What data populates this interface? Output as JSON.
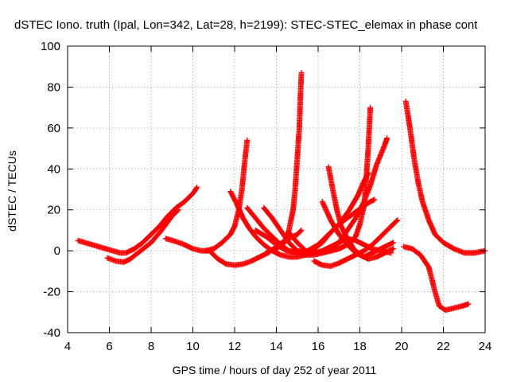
{
  "chart_data": {
    "type": "scatter",
    "title": "dSTEC Iono. truth (Ipal, Lon=342, Lat=28, h=2199): STEC-STEC_elemax in phase cont",
    "xlabel": "GPS time / hours of day 252 of year 2011",
    "ylabel": "dSTEC  / TECUs",
    "xlim": [
      4,
      24
    ],
    "ylim": [
      -40,
      100
    ],
    "x_ticks": [
      4,
      6,
      8,
      10,
      12,
      14,
      16,
      18,
      20,
      22,
      24
    ],
    "y_ticks": [
      -40,
      -20,
      0,
      20,
      40,
      60,
      80,
      100
    ],
    "x_tick_labels": [
      "4",
      "6",
      "8",
      "10",
      "12",
      "14",
      "16",
      "18",
      "20",
      "22",
      "24"
    ],
    "y_tick_labels": [
      "-40",
      "-20",
      "0",
      "20",
      "40",
      "60",
      "80",
      "100"
    ],
    "grid": true,
    "marker": "+",
    "color": "#ff0000",
    "series": [
      {
        "points": [
          [
            4.5,
            5
          ],
          [
            5.0,
            3.5
          ],
          [
            5.5,
            2
          ],
          [
            6.0,
            0.5
          ],
          [
            6.5,
            -1
          ],
          [
            6.8,
            -1
          ],
          [
            7.2,
            1
          ],
          [
            7.6,
            4
          ],
          [
            8.0,
            8
          ],
          [
            8.4,
            12
          ],
          [
            8.8,
            17
          ],
          [
            9.2,
            21
          ],
          [
            9.6,
            24
          ],
          [
            10.0,
            28
          ],
          [
            10.2,
            31
          ]
        ]
      },
      {
        "points": [
          [
            5.9,
            -3.5
          ],
          [
            6.3,
            -5
          ],
          [
            6.7,
            -5.5
          ],
          [
            7.0,
            -4
          ],
          [
            7.5,
            0
          ],
          [
            8.0,
            4
          ],
          [
            8.5,
            10
          ],
          [
            9.0,
            17
          ],
          [
            9.3,
            20
          ]
        ]
      },
      {
        "points": [
          [
            8.7,
            6
          ],
          [
            9.2,
            4.5
          ],
          [
            9.6,
            3
          ],
          [
            10.0,
            1
          ],
          [
            10.4,
            0
          ],
          [
            10.8,
            0
          ],
          [
            11.2,
            -4
          ],
          [
            11.6,
            -6.5
          ],
          [
            12.0,
            -7
          ],
          [
            12.4,
            -6.5
          ],
          [
            12.8,
            -5
          ],
          [
            13.2,
            -3
          ],
          [
            13.6,
            -1
          ],
          [
            14.0,
            2
          ],
          [
            14.4,
            5
          ],
          [
            14.8,
            7
          ],
          [
            15.0,
            8
          ],
          [
            15.2,
            10
          ]
        ]
      },
      {
        "points": [
          [
            10.6,
            0
          ],
          [
            11.0,
            1
          ],
          [
            11.4,
            4
          ],
          [
            11.8,
            8
          ],
          [
            12.0,
            12
          ],
          [
            12.2,
            20
          ],
          [
            12.35,
            30
          ],
          [
            12.5,
            45
          ],
          [
            12.6,
            54
          ]
        ]
      },
      {
        "points": [
          [
            11.8,
            29
          ],
          [
            12.1,
            23
          ],
          [
            12.4,
            16
          ],
          [
            12.7,
            11
          ],
          [
            13.0,
            7
          ],
          [
            13.4,
            3
          ],
          [
            13.8,
            0
          ],
          [
            14.2,
            -2
          ],
          [
            14.6,
            -3
          ],
          [
            15.0,
            -3
          ],
          [
            15.4,
            -2
          ],
          [
            15.8,
            -1
          ],
          [
            16.2,
            0
          ],
          [
            16.6,
            2
          ],
          [
            17.0,
            4
          ],
          [
            17.4,
            6
          ],
          [
            17.8,
            5
          ],
          [
            18.2,
            3
          ],
          [
            18.6,
            1
          ],
          [
            19.0,
            0
          ],
          [
            19.5,
            -1
          ]
        ]
      },
      {
        "points": [
          [
            12.6,
            21
          ],
          [
            13.0,
            16
          ],
          [
            13.4,
            11
          ],
          [
            13.8,
            7
          ],
          [
            14.2,
            3
          ],
          [
            14.6,
            0
          ],
          [
            15.0,
            -1
          ],
          [
            15.4,
            -2
          ],
          [
            15.8,
            -2
          ],
          [
            16.2,
            -1
          ],
          [
            16.6,
            0
          ],
          [
            17.0,
            1
          ]
        ]
      },
      {
        "points": [
          [
            13.4,
            21
          ],
          [
            13.8,
            16
          ],
          [
            14.2,
            10
          ],
          [
            14.6,
            4
          ],
          [
            15.0,
            0
          ],
          [
            15.4,
            -1
          ],
          [
            15.8,
            1
          ],
          [
            16.2,
            4
          ],
          [
            16.6,
            9
          ],
          [
            17.0,
            13
          ],
          [
            17.4,
            16
          ],
          [
            17.8,
            19
          ],
          [
            18.2,
            22
          ],
          [
            18.5,
            24
          ],
          [
            18.7,
            25
          ]
        ]
      },
      {
        "points": [
          [
            13.0,
            10
          ],
          [
            13.5,
            7
          ],
          [
            14.0,
            3
          ],
          [
            14.5,
            0
          ],
          [
            15.0,
            -1
          ],
          [
            15.5,
            0
          ],
          [
            16.0,
            3
          ],
          [
            16.5,
            8
          ],
          [
            17.0,
            13
          ],
          [
            17.5,
            20
          ],
          [
            17.9,
            27
          ],
          [
            18.2,
            34
          ],
          [
            18.4,
            38
          ]
        ]
      },
      {
        "points": [
          [
            13.6,
            0
          ],
          [
            14.0,
            1
          ],
          [
            14.4,
            4
          ],
          [
            14.6,
            10
          ],
          [
            14.8,
            20
          ],
          [
            14.9,
            30
          ],
          [
            15.0,
            45
          ],
          [
            15.1,
            60
          ],
          [
            15.15,
            75
          ],
          [
            15.2,
            87
          ]
        ]
      },
      {
        "points": [
          [
            14.6,
            9
          ],
          [
            15.0,
            4
          ],
          [
            15.4,
            0
          ],
          [
            15.8,
            -1
          ],
          [
            16.2,
            -1
          ],
          [
            16.6,
            0
          ],
          [
            17.0,
            1
          ],
          [
            17.4,
            3
          ],
          [
            17.8,
            7
          ],
          [
            18.0,
            13
          ],
          [
            18.2,
            22
          ],
          [
            18.3,
            35
          ],
          [
            18.4,
            50
          ],
          [
            18.5,
            70
          ]
        ]
      },
      {
        "points": [
          [
            15.8,
            -5
          ],
          [
            16.2,
            -7
          ],
          [
            16.6,
            -7.5
          ],
          [
            17.0,
            -6
          ],
          [
            17.4,
            -4
          ],
          [
            17.8,
            -2
          ],
          [
            18.2,
            0
          ],
          [
            18.6,
            3
          ],
          [
            19.0,
            7
          ],
          [
            19.4,
            11
          ],
          [
            19.8,
            15
          ]
        ]
      },
      {
        "points": [
          [
            16.2,
            24
          ],
          [
            16.6,
            15
          ],
          [
            17.0,
            8
          ],
          [
            17.4,
            3
          ],
          [
            17.8,
            -1
          ],
          [
            18.2,
            -3
          ],
          [
            18.6,
            -1
          ],
          [
            19.0,
            1
          ],
          [
            19.4,
            3
          ],
          [
            19.6,
            4
          ]
        ]
      },
      {
        "points": [
          [
            16.5,
            41
          ],
          [
            16.7,
            30
          ],
          [
            16.9,
            20
          ],
          [
            17.1,
            12
          ],
          [
            17.4,
            6
          ],
          [
            17.7,
            1
          ],
          [
            18.0,
            -2
          ],
          [
            18.4,
            -4
          ],
          [
            18.8,
            -3
          ],
          [
            19.2,
            -1
          ],
          [
            19.6,
            1
          ]
        ]
      },
      {
        "points": [
          [
            16.6,
            0
          ],
          [
            17.0,
            4
          ],
          [
            17.4,
            10
          ],
          [
            17.8,
            16
          ],
          [
            18.2,
            24
          ],
          [
            18.5,
            32
          ],
          [
            18.8,
            42
          ],
          [
            19.0,
            47
          ],
          [
            19.2,
            52
          ],
          [
            19.3,
            55
          ]
        ]
      },
      {
        "points": [
          [
            20.1,
            2
          ],
          [
            20.5,
            1
          ],
          [
            20.9,
            -2
          ],
          [
            21.3,
            -8
          ],
          [
            21.6,
            -20
          ],
          [
            21.8,
            -27
          ],
          [
            22.1,
            -29
          ],
          [
            22.5,
            -28
          ],
          [
            22.9,
            -27
          ],
          [
            23.2,
            -26
          ]
        ]
      },
      {
        "points": [
          [
            20.2,
            73
          ],
          [
            20.4,
            60
          ],
          [
            20.6,
            45
          ],
          [
            20.8,
            33
          ],
          [
            21.0,
            24
          ],
          [
            21.3,
            15
          ],
          [
            21.6,
            8
          ],
          [
            22.0,
            4
          ],
          [
            22.5,
            1
          ],
          [
            23.0,
            -1
          ],
          [
            23.5,
            -1
          ],
          [
            24.0,
            0
          ]
        ]
      }
    ]
  }
}
